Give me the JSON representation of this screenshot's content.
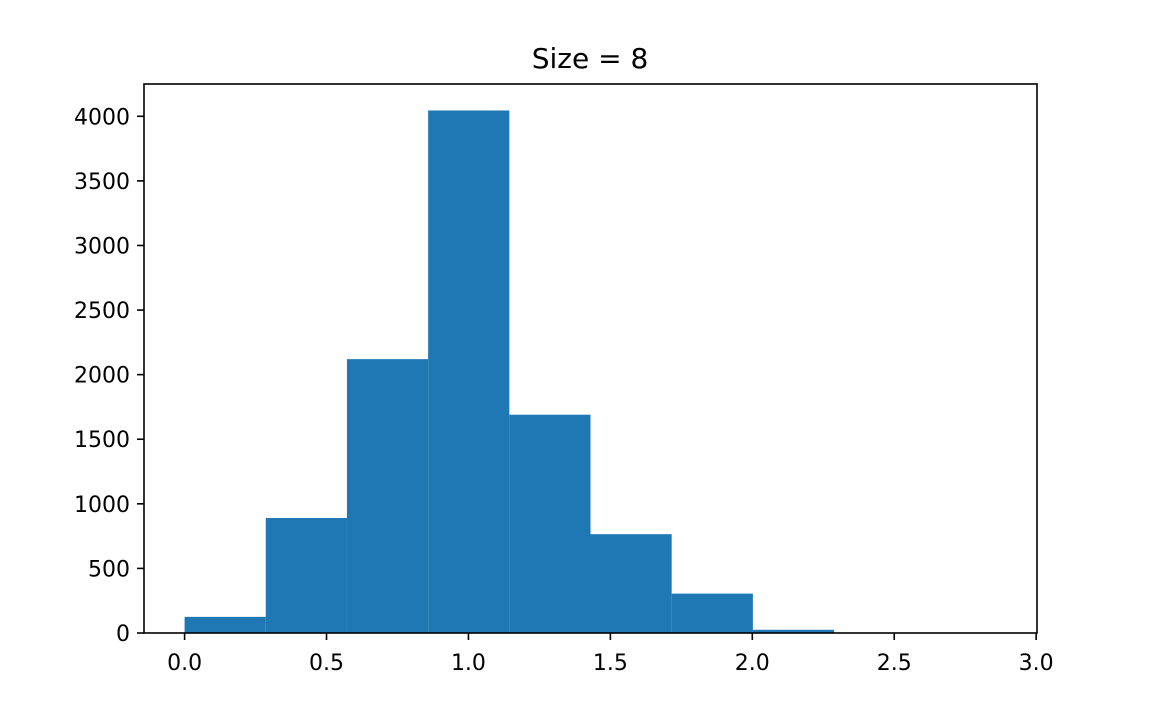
{
  "chart_data": {
    "type": "bar",
    "title": "Size = 8",
    "xlabel": "",
    "ylabel": "",
    "bin_edges": [
      0.0,
      0.286,
      0.572,
      0.858,
      1.144,
      1.43,
      1.716,
      2.002,
      2.288,
      2.574,
      2.86
    ],
    "values": [
      125,
      890,
      2120,
      4045,
      1690,
      765,
      305,
      25,
      3,
      1
    ],
    "xlim": [
      -0.143,
      3.003
    ],
    "ylim": [
      0,
      4250
    ],
    "xticks": [
      0.0,
      0.5,
      1.0,
      1.5,
      2.0,
      2.5,
      3.0
    ],
    "xtick_labels": [
      "0.0",
      "0.5",
      "1.0",
      "1.5",
      "2.0",
      "2.5",
      "3.0"
    ],
    "yticks": [
      0,
      500,
      1000,
      1500,
      2000,
      2500,
      3000,
      3500,
      4000
    ],
    "ytick_labels": [
      "0",
      "500",
      "1000",
      "1500",
      "2000",
      "2500",
      "3000",
      "3500",
      "4000"
    ],
    "grid": false,
    "bar_color": "#1f77b4"
  }
}
